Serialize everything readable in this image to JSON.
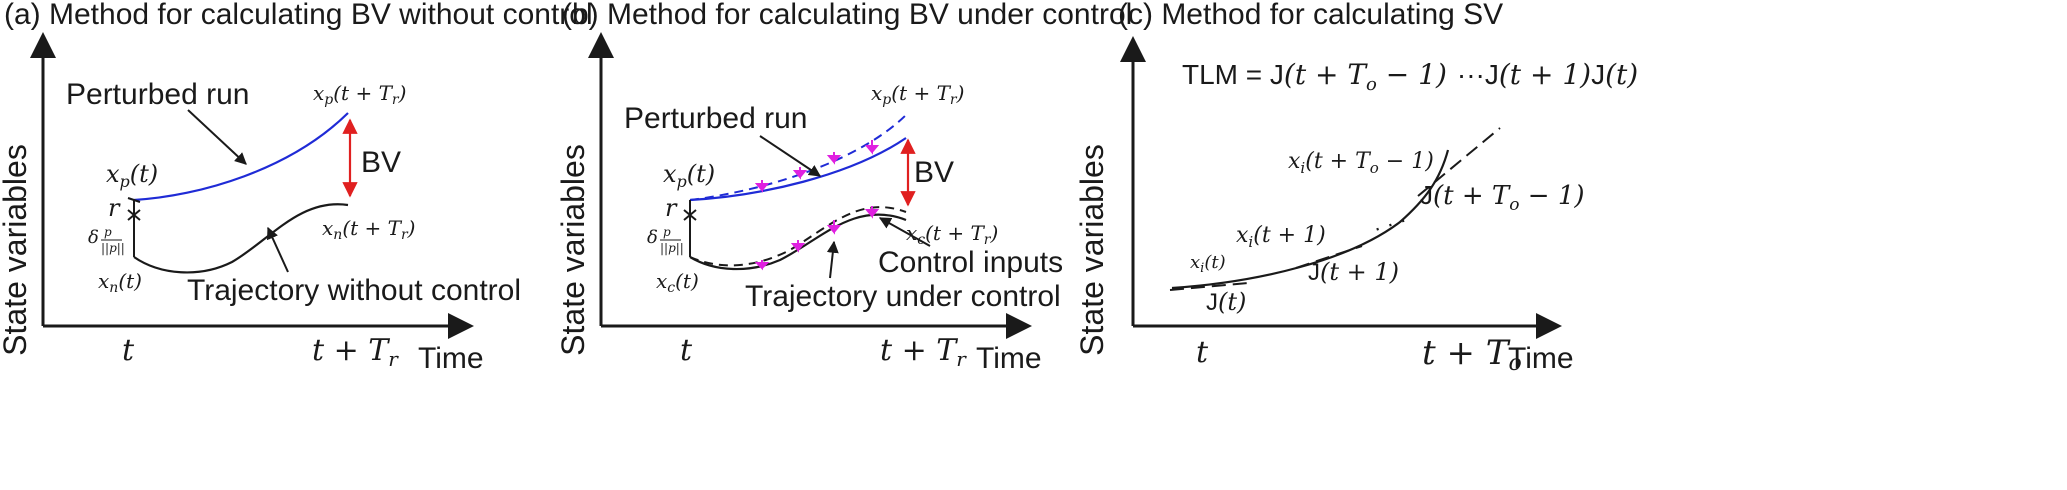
{
  "panels": [
    {
      "title": "(a) Method for calculating BV without control",
      "ylabel": "State variables",
      "xlabel": "Time",
      "tick_start": "t",
      "tick_end_base": "t + T",
      "tick_end_sub": "r",
      "perturbed_label": "Perturbed run",
      "trajectory_label": "Trajectory without control",
      "bv_label": "BV",
      "xp_t_base": "x",
      "xp_t_sub": "p",
      "xp_t_arg": "(t)",
      "xp_end_arg": "(t + T",
      "xp_end_sub": "r",
      "xp_end_close": ")",
      "xn_t_sub": "n",
      "r_label": "r",
      "delta_label": "δ",
      "delta_frac_top": "p",
      "delta_frac_bottom": "||p||"
    },
    {
      "title": "(b) Method for calculating BV under control",
      "ylabel": "State variables",
      "xlabel": "Time",
      "tick_start": "t",
      "tick_end_base": "t + T",
      "tick_end_sub": "r",
      "perturbed_label": "Perturbed run",
      "trajectory_label": "Trajectory under control",
      "control_label": "Control inputs",
      "bv_label": "BV",
      "xc_t_sub": "c",
      "r_label": "r"
    },
    {
      "title": "(c) Method for calculating SV",
      "ylabel": "State variables",
      "xlabel": "Time",
      "tick_start": "t",
      "tick_end_base": "t + T",
      "tick_end_sub": "o",
      "tlm_label": "TLM = ",
      "tlm_J": "J",
      "tlm_arg1": "(t + T",
      "tlm_arg1_sub": "o",
      "tlm_arg1_close": " − 1)",
      "tlm_dots": "···",
      "tlm_arg2": "(t + 1)",
      "tlm_arg3": "(t)",
      "xi_sub": "i",
      "xi_end_arg": "(t + T",
      "xi_end_sub": "o",
      "xi_end_close": " − 1)",
      "xi_mid_arg": "(t + 1)",
      "xi_t_arg": "(t)",
      "j_end_arg": "(t + T",
      "j_end_sub": "o",
      "j_end_close": " − 1)",
      "j_mid_arg": "(t + 1)",
      "j_t_arg": "(t)",
      "dots": "·  ·  ·"
    }
  ],
  "colors": {
    "perturbed": "#1f2bd6",
    "bv_arrow": "#e02020",
    "control_marker": "#e020e0",
    "axis": "#1a1a1a"
  }
}
